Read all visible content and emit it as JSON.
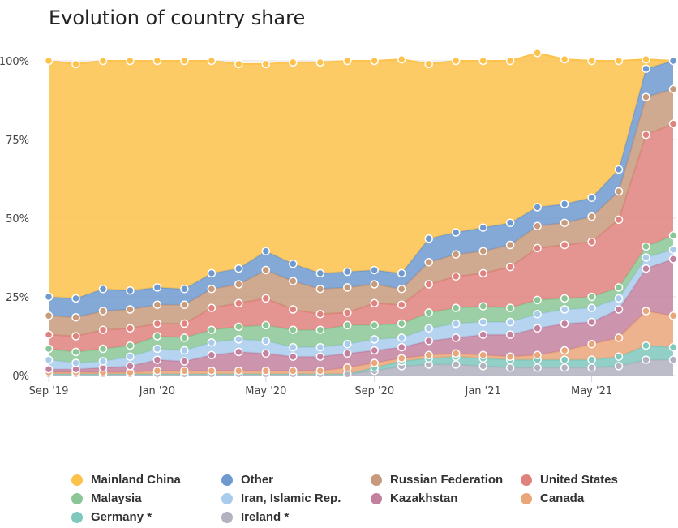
{
  "title": "Evolution of country share",
  "chart_data": {
    "type": "area",
    "stacking": "percent",
    "xlabel": "",
    "ylabel": "",
    "ylim": [
      0,
      100
    ],
    "grid": true,
    "legend_position": "bottom",
    "x": [
      "2019-09",
      "2019-10",
      "2019-11",
      "2019-12",
      "2020-01",
      "2020-02",
      "2020-03",
      "2020-04",
      "2020-05",
      "2020-06",
      "2020-07",
      "2020-08",
      "2020-09",
      "2020-10",
      "2020-11",
      "2020-12",
      "2021-01",
      "2021-02",
      "2021-03",
      "2021-04",
      "2021-05",
      "2021-06",
      "2021-07",
      "2021-08"
    ],
    "x_tick_labels": [
      {
        "x": "2019-09",
        "label": "Sep '19"
      },
      {
        "x": "2020-01",
        "label": "Jan '20"
      },
      {
        "x": "2020-05",
        "label": "May '20"
      },
      {
        "x": "2020-09",
        "label": "Sep '20"
      },
      {
        "x": "2021-01",
        "label": "Jan '21"
      },
      {
        "x": "2021-05",
        "label": "May '21"
      }
    ],
    "y_tick_labels": [
      "0%",
      "25%",
      "50%",
      "75%",
      "100%"
    ],
    "series": [
      {
        "name": "Ireland *",
        "color": "#b2b2c0",
        "values": [
          0.5,
          0.5,
          0.5,
          0.5,
          0.5,
          0.5,
          0.5,
          0.5,
          0.5,
          0.5,
          0.5,
          0.5,
          1.5,
          3,
          3.5,
          3.5,
          3,
          2.5,
          2.5,
          2.5,
          2.5,
          3,
          5,
          5
        ]
      },
      {
        "name": "Germany *",
        "color": "#7fc8bd",
        "values": [
          0,
          0,
          0,
          0,
          0,
          0,
          0,
          0,
          0,
          0,
          0,
          0,
          1,
          1.5,
          2,
          2.5,
          2.5,
          2.5,
          2.5,
          2.5,
          2.5,
          3,
          4.5,
          4
        ]
      },
      {
        "name": "Canada",
        "color": "#e9a67a",
        "values": [
          0.5,
          0.5,
          0.5,
          0.5,
          1,
          1,
          1,
          1,
          1,
          1,
          1,
          2,
          1.5,
          1,
          1,
          1,
          1,
          1,
          1.5,
          3,
          5,
          6,
          11,
          10
        ]
      },
      {
        "name": "Kazakhstan",
        "color": "#c4819f",
        "values": [
          1,
          1,
          1.5,
          2,
          3.5,
          3,
          5,
          6,
          5.5,
          4.5,
          4.5,
          4.5,
          4,
          3.5,
          4.5,
          5,
          6.5,
          7,
          8.5,
          8.5,
          7,
          9,
          13.5,
          18
        ]
      },
      {
        "name": "Iran, Islamic Rep.",
        "color": "#a9ccec",
        "values": [
          3,
          2,
          2,
          3,
          3.5,
          3.5,
          4,
          4,
          4,
          3,
          3,
          3,
          3.5,
          3,
          4,
          4.5,
          4,
          4,
          4.5,
          4.5,
          4.5,
          3.5,
          3.5,
          3
        ]
      },
      {
        "name": "Malaysia",
        "color": "#8bc796",
        "values": [
          3.5,
          3.5,
          4,
          3.5,
          4,
          4,
          4,
          4,
          5,
          5.5,
          5.5,
          6,
          4.5,
          4.5,
          5,
          5,
          5,
          4.5,
          4.5,
          3.5,
          3.5,
          3.5,
          3.5,
          4.5
        ]
      },
      {
        "name": "United States",
        "color": "#e0827e",
        "values": [
          4.5,
          5,
          6,
          5.5,
          4,
          4.5,
          7,
          7.5,
          8.5,
          6.5,
          5,
          4,
          7,
          6,
          9,
          10,
          10.5,
          13,
          16.5,
          17,
          17.5,
          21.5,
          35.5,
          35.5
        ]
      },
      {
        "name": "Russian Federation",
        "color": "#c79a7c",
        "values": [
          6,
          6,
          6,
          6,
          6,
          6,
          6,
          6,
          9,
          9,
          8,
          8,
          6,
          5,
          7,
          7,
          7,
          7,
          7,
          7,
          8,
          9,
          12,
          11
        ]
      },
      {
        "name": "Other",
        "color": "#6f9ad0",
        "values": [
          6,
          6,
          7,
          6,
          5.5,
          5,
          5,
          5,
          6,
          5.5,
          5,
          5,
          4.5,
          5,
          7.5,
          7,
          7.5,
          7,
          6,
          6,
          6,
          7,
          9,
          9
        ]
      },
      {
        "name": "Mainland China",
        "color": "#fdc24b",
        "values": [
          75,
          74.5,
          72.5,
          73,
          72,
          72.5,
          67.5,
          65,
          59.5,
          64,
          67,
          67,
          66.5,
          68,
          55.5,
          54.5,
          53,
          51.5,
          49,
          46,
          43.5,
          34.5,
          3,
          0
        ]
      }
    ]
  },
  "legend": [
    {
      "label": "Mainland China",
      "color": "#fdc24b"
    },
    {
      "label": "Other",
      "color": "#6f9ad0"
    },
    {
      "label": "Russian Federation",
      "color": "#c79a7c"
    },
    {
      "label": "United States",
      "color": "#e0827e"
    },
    {
      "label": "Malaysia",
      "color": "#8bc796"
    },
    {
      "label": "Iran, Islamic Rep.",
      "color": "#a9ccec"
    },
    {
      "label": "Kazakhstan",
      "color": "#c4819f"
    },
    {
      "label": "Canada",
      "color": "#e9a67a"
    },
    {
      "label": "Germany *",
      "color": "#7fc8bd"
    },
    {
      "label": "Ireland *",
      "color": "#b2b2c0"
    }
  ]
}
